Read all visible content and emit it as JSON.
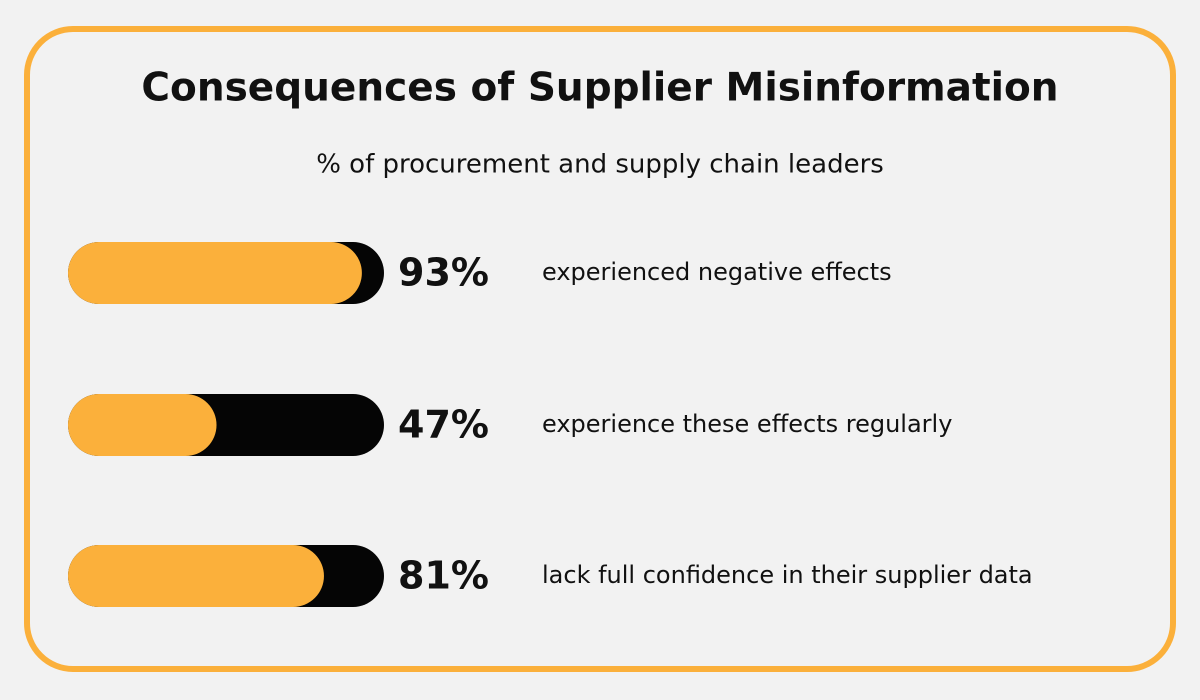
{
  "chart_data": {
    "type": "bar",
    "title": "Consequences of Supplier Misinformation",
    "subtitle": "% of procurement and supply chain leaders",
    "categories": [
      "experienced negative effects",
      "experience these effects regularly",
      "lack full confidence in their supplier data"
    ],
    "values": [
      93,
      47,
      81
    ],
    "value_labels": [
      "93%",
      "47%",
      "81%"
    ],
    "color": "#fbb03b",
    "xlim": [
      0,
      100
    ]
  }
}
